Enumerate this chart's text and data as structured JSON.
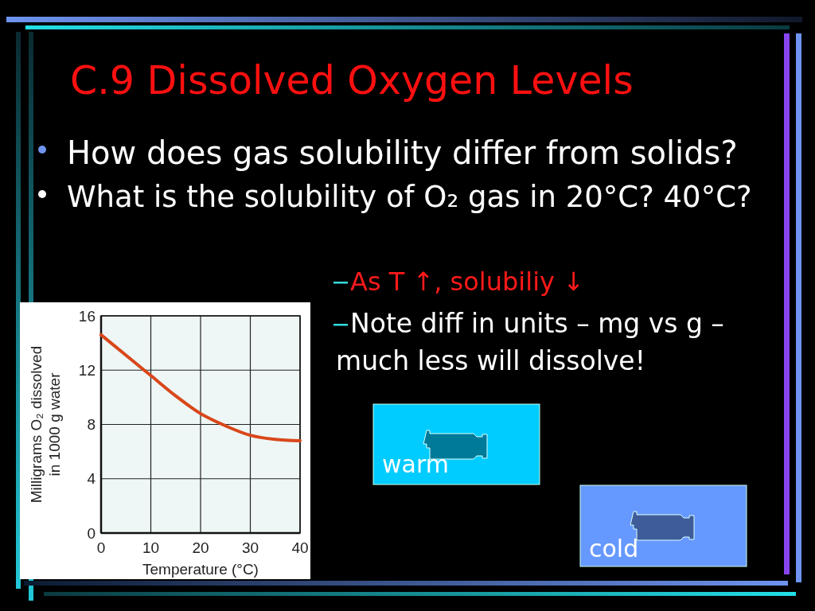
{
  "chart_data": {
    "type": "line",
    "title": "C.9 Dissolved Oxygen Levels",
    "xlabel": "Temperature (°C)",
    "ylabel": "Milligrams O₂ dissolved in 1000 g water",
    "x": [
      0,
      5,
      10,
      15,
      20,
      25,
      30,
      35,
      40
    ],
    "series": [
      {
        "color": "#d9471b",
        "values": [
          14.6,
          13.1,
          11.6,
          10.1,
          8.8,
          7.9,
          7.2,
          6.9,
          6.8
        ]
      }
    ],
    "xlim": [
      0,
      40
    ],
    "ylim": [
      0,
      16
    ],
    "xticks": [
      0,
      10,
      20,
      30,
      40
    ],
    "yticks": [
      0,
      4,
      8,
      12,
      16
    ],
    "grid": true,
    "annotations": [
      "How does gas solubility differ from solids?",
      "What is the solubility of O₂ gas in 20°C? 40°C?",
      "As T ↑, solubiliy ↓",
      "Note diff in units – mg vs g – much less will dissolve!",
      "warm",
      "cold"
    ]
  }
}
